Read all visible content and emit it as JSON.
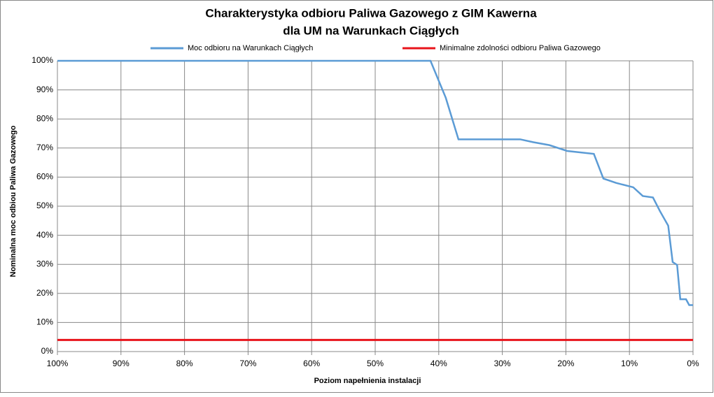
{
  "chart_data": {
    "type": "line",
    "title": [
      "Charakterystyka odbioru Paliwa Gazowego z GIM Kawerna",
      "dla UM na Warunkach Ciągłych"
    ],
    "x_label": "Poziom napełnienia instalacji",
    "y_label": "Nominalna moc odbiou Paliwa Gazowego",
    "xlim": [
      100,
      0
    ],
    "xticks": [
      {
        "value": 100,
        "label": "100%"
      },
      {
        "value": 90,
        "label": "90%"
      },
      {
        "value": 80,
        "label": "80%"
      },
      {
        "value": 70,
        "label": "70%"
      },
      {
        "value": 60,
        "label": "60%"
      },
      {
        "value": 50,
        "label": "50%"
      },
      {
        "value": 40,
        "label": "40%"
      },
      {
        "value": 30,
        "label": "30%"
      },
      {
        "value": 20,
        "label": "20%"
      },
      {
        "value": 10,
        "label": "10%"
      },
      {
        "value": 0,
        "label": "0%"
      }
    ],
    "ylim": [
      0,
      100
    ],
    "yticks": [
      {
        "value": 0,
        "label": "0%"
      },
      {
        "value": 10,
        "label": "10%"
      },
      {
        "value": 20,
        "label": "20%"
      },
      {
        "value": 30,
        "label": "30%"
      },
      {
        "value": 40,
        "label": "40%"
      },
      {
        "value": 50,
        "label": "50%"
      },
      {
        "value": 60,
        "label": "60%"
      },
      {
        "value": 70,
        "label": "70%"
      },
      {
        "value": 80,
        "label": "80%"
      },
      {
        "value": 90,
        "label": "90%"
      },
      {
        "value": 100,
        "label": "100%"
      }
    ],
    "grid": true,
    "legend": "top",
    "series": [
      {
        "name": "Moc odbioru na Warunkach Ciągłych",
        "color": "#5b9bd5",
        "x": [
          100,
          41.3,
          38.9,
          36.9,
          27.2,
          25.1,
          22.6,
          19.8,
          15.6,
          14.1,
          12.1,
          9.4,
          7.9,
          6.3,
          5.2,
          3.9,
          3.2,
          2.5,
          2.0,
          1.1,
          0.6,
          0
        ],
        "values": [
          100,
          100,
          87.3,
          73,
          73,
          72,
          71,
          69,
          68,
          59.5,
          58,
          56.5,
          53.5,
          53,
          48.3,
          43.3,
          30.8,
          29.8,
          18,
          18,
          16,
          16
        ]
      },
      {
        "name": "Minimalne zdolności odbioru Paliwa Gazowego",
        "color": "#e8141b",
        "x": [
          100,
          0
        ],
        "values": [
          4,
          4
        ]
      }
    ]
  }
}
